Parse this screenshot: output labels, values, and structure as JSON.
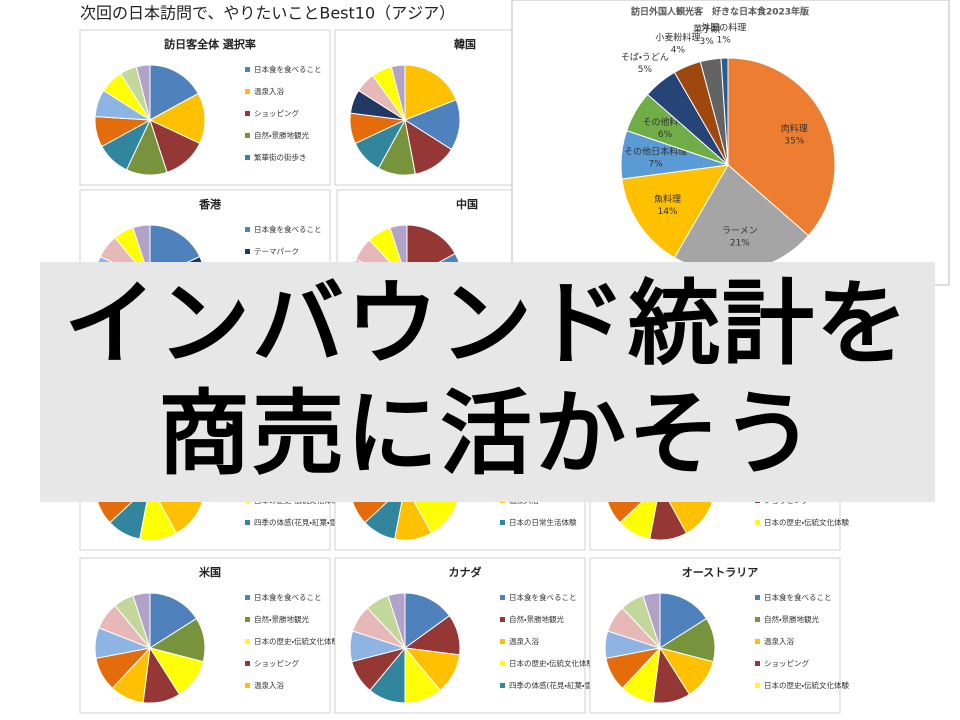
{
  "header": {
    "title": "次回の日本訪問で、やりたいことBest10（アジア）"
  },
  "banner": {
    "lines": [
      "インバウンド統計を",
      "商売に活かそう"
    ]
  },
  "chart_data": [
    {
      "type": "pie",
      "title": "訪日外国人観光客　好きな日本食2023年版",
      "categories": [
        "肉料理",
        "ラーメン",
        "魚料理",
        "その他日本料理",
        "その他料理",
        "そば・うどん",
        "小麦粉料理",
        "菓子類",
        "外国の料理"
      ],
      "values": [
        35,
        21,
        14,
        7,
        6,
        5,
        4,
        3,
        1
      ],
      "value_labels": [
        "35%",
        "21%",
        "14%",
        "7%",
        "6%",
        "5%",
        "4%",
        "3%",
        "1%"
      ],
      "colors": [
        "#ed7d31",
        "#a5a5a5",
        "#ffc000",
        "#5b9bd5",
        "#70ad47",
        "#264478",
        "#9e480e",
        "#636363",
        "#255e91"
      ]
    },
    {
      "type": "pie",
      "title": "訪日客全体 選択率",
      "categories": [
        "日本食を食べること",
        "温泉入浴",
        "ショッピング",
        "自然・景勝地観光",
        "繁華街の街歩き",
        null,
        null,
        null,
        null,
        null
      ],
      "values": [
        17,
        15,
        13,
        12,
        10,
        9,
        8,
        7,
        5,
        4
      ],
      "colors": [
        "#4f81bd",
        "#ffc000",
        "#953735",
        "#77933c",
        "#31859c",
        "#e46c0a",
        "#8eb4e3",
        "#ffff00",
        "#c3d69b",
        "#b3a2c7"
      ]
    },
    {
      "type": "pie",
      "title": "韓国",
      "categories": [
        null,
        null,
        null,
        null,
        null,
        null,
        null,
        null,
        null,
        null
      ],
      "values": [
        19,
        15,
        13,
        11,
        10,
        9,
        7,
        6,
        6,
        4
      ],
      "colors": [
        "#ffc000",
        "#4f81bd",
        "#953735",
        "#77933c",
        "#31859c",
        "#e46c0a",
        "#1f3864",
        "#e6b9b8",
        "#ffff00",
        "#b3a2c7"
      ]
    },
    {
      "type": "pie",
      "title": "香港",
      "categories": [
        "日本食を食べること",
        "テーマパーク",
        null,
        null,
        null,
        null,
        null,
        null,
        null,
        null
      ],
      "values": [
        18,
        14,
        12,
        11,
        10,
        9,
        8,
        7,
        6,
        5
      ],
      "colors": [
        "#4f81bd",
        "#1f3864",
        "#953735",
        "#77933c",
        "#31859c",
        "#e46c0a",
        "#8eb4e3",
        "#e6b9b8",
        "#ffff00",
        "#b3a2c7"
      ]
    },
    {
      "type": "pie",
      "title": "中国",
      "categories": [
        null,
        null,
        null,
        null,
        null,
        null,
        null,
        null,
        null,
        null
      ],
      "values": [
        17,
        14,
        12,
        11,
        10,
        9,
        8,
        7,
        7,
        5
      ],
      "colors": [
        "#953735",
        "#4f81bd",
        "#77933c",
        "#ffc000",
        "#31859c",
        "#e46c0a",
        "#8eb4e3",
        "#e6b9b8",
        "#ffff00",
        "#b3a2c7"
      ]
    },
    {
      "type": "pie",
      "categories": [
        null,
        null,
        null,
        "日本の歴史・伝統文化体験",
        "四季の体感(花見・紅葉・雪等)",
        null,
        null,
        null,
        null,
        null
      ],
      "values": [
        16,
        14,
        12,
        11,
        10,
        9,
        8,
        8,
        7,
        5
      ],
      "colors": [
        "#4f81bd",
        "#77933c",
        "#ffc000",
        "#ffff00",
        "#31859c",
        "#e46c0a",
        "#8eb4e3",
        "#e6b9b8",
        "#c3d69b",
        "#b3a2c7"
      ]
    },
    {
      "type": "pie",
      "categories": [
        null,
        null,
        null,
        "温泉入浴",
        "日本の日常生活体験",
        null,
        null,
        null,
        null,
        null
      ],
      "values": [
        16,
        14,
        12,
        11,
        10,
        9,
        8,
        8,
        7,
        5
      ],
      "colors": [
        "#4f81bd",
        "#953735",
        "#ffff00",
        "#ffc000",
        "#31859c",
        "#e46c0a",
        "#8eb4e3",
        "#e6b9b8",
        "#c3d69b",
        "#b3a2c7"
      ]
    },
    {
      "type": "pie",
      "categories": [
        null,
        null,
        null,
        "ショッピング",
        "日本の歴史・伝統文化体験",
        null,
        null,
        null,
        null,
        null
      ],
      "values": [
        16,
        14,
        12,
        11,
        10,
        9,
        8,
        8,
        7,
        5
      ],
      "colors": [
        "#4f81bd",
        "#77933c",
        "#ffc000",
        "#953735",
        "#ffff00",
        "#e46c0a",
        "#8eb4e3",
        "#e6b9b8",
        "#c3d69b",
        "#b3a2c7"
      ]
    },
    {
      "type": "pie",
      "title": "米国",
      "categories": [
        "日本食を食べること",
        "自然・景勝地観光",
        "日本の歴史・伝統文化体験",
        "ショッピング",
        "温泉入浴",
        null,
        null,
        null,
        null,
        null
      ],
      "values": [
        16,
        13,
        12,
        11,
        10,
        10,
        9,
        8,
        6,
        5
      ],
      "colors": [
        "#4f81bd",
        "#77933c",
        "#ffff00",
        "#953735",
        "#ffc000",
        "#e46c0a",
        "#8eb4e3",
        "#e6b9b8",
        "#c3d69b",
        "#b3a2c7"
      ]
    },
    {
      "type": "pie",
      "title": "カナダ",
      "categories": [
        "日本食を食べること",
        "自然・景勝地観光",
        "温泉入浴",
        "日本の歴史・伝統文化体験",
        "四季の体感(花見・紅葉・雪等)",
        null,
        null,
        null,
        null,
        null
      ],
      "values": [
        15,
        12,
        12,
        11,
        11,
        10,
        9,
        8,
        7,
        5
      ],
      "colors": [
        "#4f81bd",
        "#953735",
        "#ffc000",
        "#ffff00",
        "#31859c",
        "#953735",
        "#8eb4e3",
        "#e6b9b8",
        "#c3d69b",
        "#b3a2c7"
      ]
    },
    {
      "type": "pie",
      "title": "オーストラリア",
      "categories": [
        "日本食を食べること",
        "自然・景勝地観光",
        "温泉入浴",
        "ショッピング",
        "日本の歴史・伝統文化体験",
        null,
        null,
        null,
        null,
        null
      ],
      "values": [
        16,
        13,
        12,
        11,
        10,
        10,
        8,
        8,
        7,
        5
      ],
      "colors": [
        "#4f81bd",
        "#77933c",
        "#ffc000",
        "#953735",
        "#ffff00",
        "#e46c0a",
        "#8eb4e3",
        "#e6b9b8",
        "#c3d69b",
        "#b3a2c7"
      ]
    }
  ]
}
